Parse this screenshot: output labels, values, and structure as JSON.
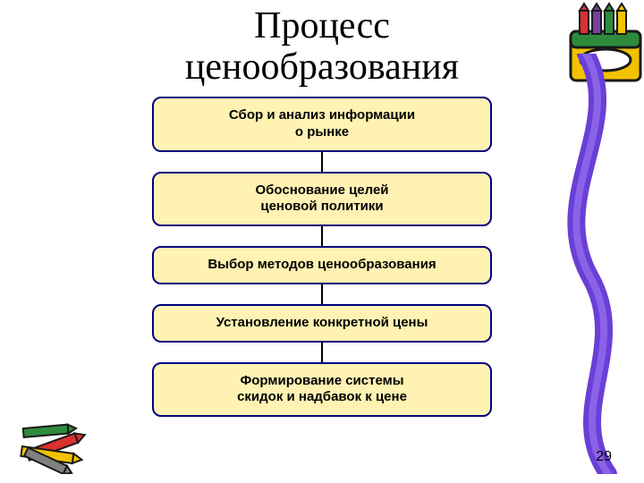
{
  "title_line1": "Процесс",
  "title_line2": "ценообразования",
  "steps": [
    "Сбор и анализ информации\nо рынке",
    "Обоснование целей\nценовой политики",
    "Выбор методов ценообразования",
    "Установление конкретной цены",
    "Формирование системы\nскидок и надбавок к цене"
  ],
  "page_number": "29",
  "colors": {
    "step_fill": "#fff2b3",
    "step_border": "#000080",
    "swoosh": "#6a3fd6",
    "crayon_red": "#d93030",
    "crayon_yellow": "#f2c200",
    "crayon_green": "#2e8b3d",
    "crayon_purple": "#7a3fa0",
    "crayon_gray": "#808080",
    "crayon_outline": "#1a1a1a"
  }
}
